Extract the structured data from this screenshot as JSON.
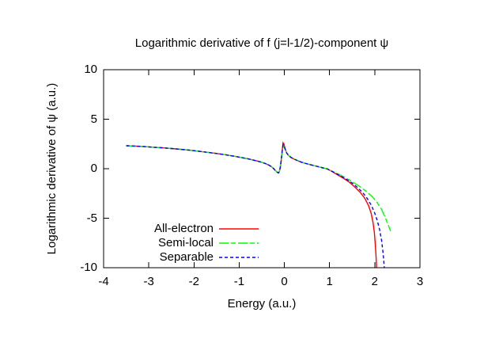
{
  "figure": {
    "title": "Logarithmic derivative of f (j=l-1/2)-component ψ",
    "xlabel": "Energy (a.u.)",
    "ylabel": "Logarithmic derivative of ψ (a.u.)"
  },
  "chart_data": {
    "type": "line",
    "title": "Logarithmic derivative of f (j=l-1/2)-component ψ",
    "xlabel": "Energy (a.u.)",
    "ylabel": "Logarithmic derivative of ψ (a.u.)",
    "xlim": [
      -4,
      3
    ],
    "ylim": [
      -10,
      10
    ],
    "xticks": [
      -4,
      -3,
      -2,
      -1,
      0,
      1,
      2,
      3
    ],
    "yticks": [
      10,
      5,
      0,
      -5,
      -10
    ],
    "grid": false,
    "legend_position": "inside-lower-middle",
    "background_color": "#ffffff",
    "axis_color": "#000000",
    "tick_style": "inward-mirrored",
    "series": [
      {
        "name": "All-electron",
        "color": "#ff0000",
        "style": "solid",
        "points": [
          [
            -3.5,
            2.32
          ],
          [
            -3.3,
            2.28
          ],
          [
            -3.1,
            2.23
          ],
          [
            -2.9,
            2.17
          ],
          [
            -2.7,
            2.11
          ],
          [
            -2.5,
            2.04
          ],
          [
            -2.3,
            1.96
          ],
          [
            -2.1,
            1.87
          ],
          [
            -1.9,
            1.77
          ],
          [
            -1.7,
            1.66
          ],
          [
            -1.5,
            1.54
          ],
          [
            -1.3,
            1.41
          ],
          [
            -1.1,
            1.26
          ],
          [
            -0.95,
            1.13
          ],
          [
            -0.8,
            0.99
          ],
          [
            -0.7,
            0.89
          ],
          [
            -0.6,
            0.78
          ],
          [
            -0.5,
            0.65
          ],
          [
            -0.42,
            0.52
          ],
          [
            -0.35,
            0.38
          ],
          [
            -0.29,
            0.22
          ],
          [
            -0.24,
            0.02
          ],
          [
            -0.2,
            -0.18
          ],
          [
            -0.16,
            -0.34
          ],
          [
            -0.13,
            -0.42
          ],
          [
            -0.11,
            -0.28
          ],
          [
            -0.09,
            0.15
          ],
          [
            -0.07,
            0.85
          ],
          [
            -0.05,
            1.7
          ],
          [
            -0.03,
            2.62
          ],
          [
            -0.01,
            2.5
          ],
          [
            0.02,
            1.95
          ],
          [
            0.05,
            1.6
          ],
          [
            0.09,
            1.36
          ],
          [
            0.14,
            1.16
          ],
          [
            0.2,
            1.0
          ],
          [
            0.28,
            0.84
          ],
          [
            0.38,
            0.66
          ],
          [
            0.48,
            0.52
          ],
          [
            0.6,
            0.38
          ],
          [
            0.72,
            0.24
          ],
          [
            0.84,
            0.1
          ],
          [
            0.95,
            -0.02
          ],
          [
            1.08,
            -0.35
          ],
          [
            1.2,
            -0.68
          ],
          [
            1.32,
            -1.0
          ],
          [
            1.44,
            -1.38
          ],
          [
            1.56,
            -1.85
          ],
          [
            1.68,
            -2.4
          ],
          [
            1.78,
            -3.0
          ],
          [
            1.86,
            -3.7
          ],
          [
            1.92,
            -4.5
          ],
          [
            1.96,
            -5.4
          ],
          [
            1.99,
            -6.4
          ],
          [
            2.01,
            -7.5
          ],
          [
            2.03,
            -9.0
          ],
          [
            2.04,
            -10.0
          ]
        ]
      },
      {
        "name": "Semi-local",
        "color": "#00ff00",
        "style": "dash",
        "points": [
          [
            -3.5,
            2.32
          ],
          [
            -3.3,
            2.28
          ],
          [
            -3.1,
            2.23
          ],
          [
            -2.9,
            2.17
          ],
          [
            -2.7,
            2.11
          ],
          [
            -2.5,
            2.04
          ],
          [
            -2.3,
            1.96
          ],
          [
            -2.1,
            1.87
          ],
          [
            -1.9,
            1.77
          ],
          [
            -1.7,
            1.66
          ],
          [
            -1.5,
            1.54
          ],
          [
            -1.3,
            1.41
          ],
          [
            -1.1,
            1.26
          ],
          [
            -0.95,
            1.13
          ],
          [
            -0.8,
            0.99
          ],
          [
            -0.7,
            0.89
          ],
          [
            -0.6,
            0.78
          ],
          [
            -0.5,
            0.65
          ],
          [
            -0.42,
            0.52
          ],
          [
            -0.35,
            0.38
          ],
          [
            -0.29,
            0.22
          ],
          [
            -0.24,
            0.02
          ],
          [
            -0.2,
            -0.18
          ],
          [
            -0.16,
            -0.34
          ],
          [
            -0.13,
            -0.42
          ],
          [
            -0.11,
            -0.28
          ],
          [
            -0.09,
            0.15
          ],
          [
            -0.07,
            0.85
          ],
          [
            -0.05,
            1.7
          ],
          [
            -0.03,
            2.3
          ],
          [
            -0.01,
            2.22
          ],
          [
            0.02,
            1.95
          ],
          [
            0.05,
            1.6
          ],
          [
            0.09,
            1.36
          ],
          [
            0.14,
            1.16
          ],
          [
            0.2,
            1.0
          ],
          [
            0.28,
            0.84
          ],
          [
            0.38,
            0.66
          ],
          [
            0.48,
            0.52
          ],
          [
            0.6,
            0.38
          ],
          [
            0.72,
            0.24
          ],
          [
            0.84,
            0.1
          ],
          [
            0.95,
            -0.02
          ],
          [
            1.08,
            -0.3
          ],
          [
            1.2,
            -0.56
          ],
          [
            1.35,
            -0.9
          ],
          [
            1.5,
            -1.3
          ],
          [
            1.65,
            -1.75
          ],
          [
            1.8,
            -2.25
          ],
          [
            1.95,
            -2.85
          ],
          [
            2.05,
            -3.4
          ],
          [
            2.15,
            -4.1
          ],
          [
            2.23,
            -4.9
          ],
          [
            2.29,
            -5.6
          ],
          [
            2.33,
            -6.05
          ],
          [
            2.35,
            -6.3
          ]
        ]
      },
      {
        "name": "Separable",
        "color": "#0000ff",
        "style": "dot",
        "points": [
          [
            -3.5,
            2.32
          ],
          [
            -3.3,
            2.28
          ],
          [
            -3.1,
            2.23
          ],
          [
            -2.9,
            2.17
          ],
          [
            -2.7,
            2.11
          ],
          [
            -2.5,
            2.04
          ],
          [
            -2.3,
            1.96
          ],
          [
            -2.1,
            1.87
          ],
          [
            -1.9,
            1.77
          ],
          [
            -1.7,
            1.66
          ],
          [
            -1.5,
            1.54
          ],
          [
            -1.3,
            1.41
          ],
          [
            -1.1,
            1.26
          ],
          [
            -0.95,
            1.13
          ],
          [
            -0.8,
            0.99
          ],
          [
            -0.7,
            0.89
          ],
          [
            -0.6,
            0.78
          ],
          [
            -0.5,
            0.65
          ],
          [
            -0.42,
            0.52
          ],
          [
            -0.35,
            0.38
          ],
          [
            -0.29,
            0.22
          ],
          [
            -0.24,
            0.02
          ],
          [
            -0.2,
            -0.18
          ],
          [
            -0.16,
            -0.34
          ],
          [
            -0.13,
            -0.42
          ],
          [
            -0.11,
            -0.28
          ],
          [
            -0.09,
            0.15
          ],
          [
            -0.07,
            0.85
          ],
          [
            -0.05,
            1.7
          ],
          [
            -0.03,
            2.42
          ],
          [
            -0.01,
            2.33
          ],
          [
            0.02,
            1.95
          ],
          [
            0.05,
            1.6
          ],
          [
            0.09,
            1.36
          ],
          [
            0.14,
            1.16
          ],
          [
            0.2,
            1.0
          ],
          [
            0.28,
            0.84
          ],
          [
            0.38,
            0.66
          ],
          [
            0.48,
            0.52
          ],
          [
            0.6,
            0.38
          ],
          [
            0.72,
            0.24
          ],
          [
            0.84,
            0.1
          ],
          [
            0.95,
            -0.02
          ],
          [
            1.08,
            -0.33
          ],
          [
            1.2,
            -0.62
          ],
          [
            1.35,
            -1.0
          ],
          [
            1.5,
            -1.45
          ],
          [
            1.62,
            -1.9
          ],
          [
            1.74,
            -2.45
          ],
          [
            1.84,
            -3.05
          ],
          [
            1.93,
            -3.75
          ],
          [
            2.0,
            -4.5
          ],
          [
            2.06,
            -5.3
          ],
          [
            2.11,
            -6.2
          ],
          [
            2.15,
            -7.2
          ],
          [
            2.18,
            -8.3
          ],
          [
            2.2,
            -9.3
          ],
          [
            2.21,
            -10.0
          ]
        ]
      }
    ]
  }
}
